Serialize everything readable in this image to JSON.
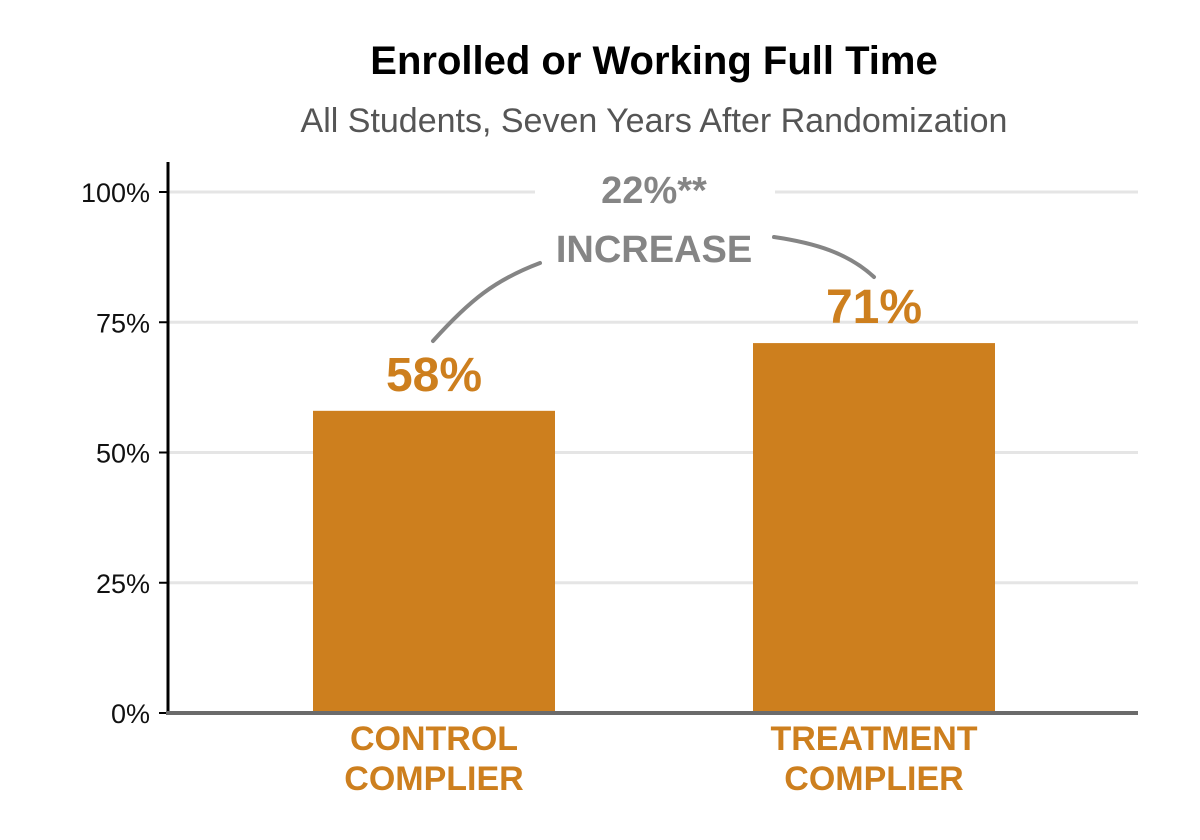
{
  "chart_data": {
    "type": "bar",
    "title": "Enrolled or Working Full Time",
    "subtitle": "All Students, Seven Years After Randomization",
    "xlabel": "",
    "ylabel": "",
    "ylim": [
      0,
      100
    ],
    "y_ticks": [
      "0%",
      "25%",
      "50%",
      "75%",
      "100%"
    ],
    "y_tick_values": [
      0,
      25,
      50,
      75,
      100
    ],
    "grid": true,
    "categories": [
      [
        "CONTROL",
        "COMPLIER"
      ],
      [
        "TREATMENT",
        "COMPLIER"
      ]
    ],
    "values": [
      58,
      71
    ],
    "value_labels": [
      "58%",
      "71%"
    ],
    "annotation": {
      "line1": "22%**",
      "line2": "INCREASE"
    },
    "colors": {
      "bar": "#cd7f1e",
      "annotation": "#858585",
      "grid": "#e5e5e5",
      "axis": "#6b6b6b"
    }
  }
}
